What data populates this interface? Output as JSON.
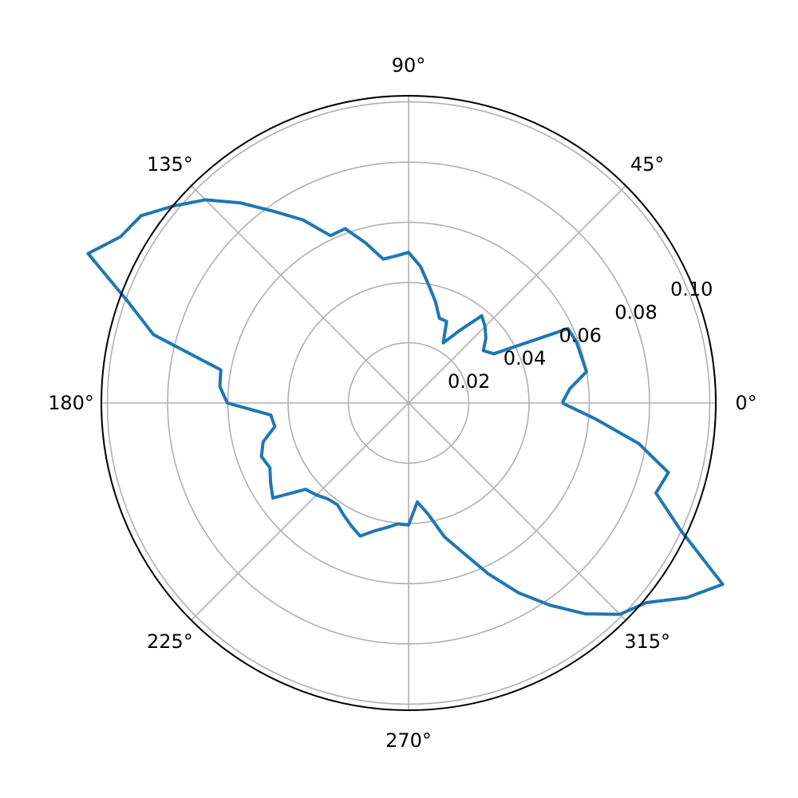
{
  "chart_data": {
    "type": "line",
    "projection": "polar",
    "title": "",
    "theta_unit": "degrees",
    "theta_tick_labels": [
      {
        "deg": 0,
        "label": "0°"
      },
      {
        "deg": 45,
        "label": "45°"
      },
      {
        "deg": 90,
        "label": "90°"
      },
      {
        "deg": 135,
        "label": "135°"
      },
      {
        "deg": 180,
        "label": "180°"
      },
      {
        "deg": 225,
        "label": "225°"
      },
      {
        "deg": 270,
        "label": "270°"
      },
      {
        "deg": 315,
        "label": "315°"
      }
    ],
    "r_tick_labels": [
      {
        "value": 0.02,
        "label": "0.02"
      },
      {
        "value": 0.04,
        "label": "0.04"
      },
      {
        "value": 0.06,
        "label": "0.06"
      },
      {
        "value": 0.08,
        "label": "0.08"
      },
      {
        "value": 0.1,
        "label": "0.10"
      }
    ],
    "rlim": [
      0,
      0.102
    ],
    "grid": true,
    "series": [
      {
        "color": "#1f77b4",
        "theta": [
          0,
          5,
          10,
          15,
          20,
          25,
          30,
          35,
          40,
          45,
          50,
          55,
          60,
          65,
          70,
          75,
          80,
          85,
          90,
          95,
          100,
          105,
          110,
          115,
          120,
          125,
          130,
          135,
          140,
          145,
          150,
          155,
          160,
          165,
          170,
          175,
          180,
          185,
          190,
          195,
          200,
          205,
          210,
          215,
          220,
          225,
          230,
          235,
          240,
          245,
          250,
          255,
          260,
          265,
          270,
          275,
          280,
          285,
          290,
          295,
          300,
          305,
          310,
          315,
          320,
          325,
          330,
          335,
          340,
          345,
          350,
          355,
          360
        ],
        "r": [
          0.051,
          0.0537,
          0.06,
          0.0594,
          0.0593,
          0.0584,
          0.0327,
          0.0303,
          0.0335,
          0.0359,
          0.0378,
          0.0292,
          0.023,
          0.0299,
          0.0299,
          0.0347,
          0.0394,
          0.0455,
          0.05,
          0.049,
          0.0485,
          0.055,
          0.0616,
          0.0613,
          0.0702,
          0.0776,
          0.0867,
          0.0954,
          0.1018,
          0.1084,
          0.1104,
          0.1174,
          0.0995,
          0.0877,
          0.0633,
          0.0629,
          0.0602,
          0.0459,
          0.0451,
          0.05,
          0.052,
          0.0508,
          0.0529,
          0.055,
          0.0446,
          0.0432,
          0.0416,
          0.0412,
          0.043,
          0.045,
          0.047,
          0.044,
          0.042,
          0.0403,
          0.0405,
          0.033,
          0.0375,
          0.046,
          0.0529,
          0.0626,
          0.0727,
          0.082,
          0.0914,
          0.0992,
          0.1031,
          0.1127,
          0.1204,
          0.0995,
          0.0874,
          0.0893,
          0.0776,
          0.0626,
          0.051
        ]
      }
    ]
  }
}
